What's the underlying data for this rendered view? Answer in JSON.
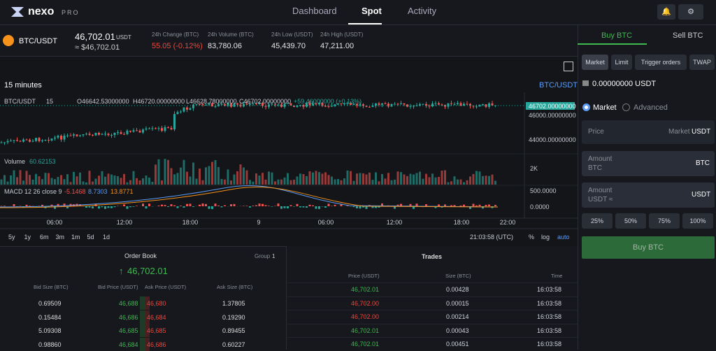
{
  "header": {
    "logo": "nexo",
    "logo_sub": "PRO",
    "nav": [
      "Dashboard",
      "Spot",
      "Activity"
    ]
  },
  "ticker": {
    "pair": "BTC/USDT",
    "price": "46,702.01",
    "price_unit": "USDT",
    "price_usd": "≈ $46,702.01",
    "stats": [
      {
        "label": "24h Change (BTC)",
        "value": "55.05 (-0.12%)",
        "color": "red"
      },
      {
        "label": "24h Volume (BTC)",
        "value": "83,780.06"
      },
      {
        "label": "24h Low (USDT)",
        "value": "45,439.70"
      },
      {
        "label": "24h High (USDT)",
        "value": "47,211.00"
      }
    ]
  },
  "chart": {
    "interval": "15 minutes",
    "symbol": "BTC/USDT",
    "legend": {
      "pair": "BTC/USDT",
      "interval": "15",
      "open": "O46642.53000000",
      "high": "H46720.00000000",
      "low": "L46628.78000000",
      "close": "C46702.00000000",
      "change": "+59.46000000 (+0.13%)"
    },
    "price_axis": [
      "46702.00000000",
      "46000.00000000",
      "44000.00000000"
    ],
    "volume": {
      "label": "Volume",
      "value": "60.62153",
      "axis": "2K"
    },
    "macd": {
      "label": "MACD 12 26 close 9",
      "values": [
        "-5.1468",
        "8.7303",
        "13.8771"
      ],
      "axis": [
        "500.0000",
        "0.0000"
      ]
    },
    "time_axis": [
      "06:00",
      "12:00",
      "18:00",
      "9",
      "06:00",
      "12:00",
      "18:00",
      "22:00"
    ],
    "ranges": [
      "5y",
      "1y",
      "6m",
      "3m",
      "1m",
      "5d",
      "1d"
    ],
    "clock": "21:03:58 (UTC)",
    "scale_options": [
      "%",
      "log",
      "auto"
    ]
  },
  "order_book": {
    "title": "Order Book",
    "group_label": "Group",
    "group_value": "1",
    "last_price": "46,702.01",
    "headers": [
      "Bid Size (BTC)",
      "Bid Price (USDT)",
      "Ask Price (USDT)",
      "Ask Size (BTC)"
    ],
    "rows": [
      [
        "0.69509",
        "46,688",
        "46,680",
        "1.37805"
      ],
      [
        "0.15484",
        "46,686",
        "46,684",
        "0.19290"
      ],
      [
        "5.09308",
        "46,685",
        "46,685",
        "0.89455"
      ],
      [
        "0.98860",
        "46,684",
        "46,686",
        "0.60227"
      ]
    ]
  },
  "trades": {
    "title": "Trades",
    "headers": [
      "Price (USDT)",
      "Size (BTC)",
      "Time"
    ],
    "rows": [
      {
        "price": "46,702.01",
        "size": "0.00428",
        "time": "16:03:58",
        "color": "green"
      },
      {
        "price": "46,702.00",
        "size": "0.00015",
        "time": "16:03:58",
        "color": "red"
      },
      {
        "price": "46,702.00",
        "size": "0.00214",
        "time": "16:03:58",
        "color": "red"
      },
      {
        "price": "46,702.01",
        "size": "0.00043",
        "time": "16:03:58",
        "color": "green"
      },
      {
        "price": "46,702.01",
        "size": "0.00451",
        "time": "16:03:58",
        "color": "green"
      }
    ]
  },
  "order_form": {
    "tabs": [
      "Buy BTC",
      "Sell BTC"
    ],
    "order_types": [
      "Market",
      "Limit",
      "Trigger orders",
      "TWAP"
    ],
    "balance": "0.00000000 USDT",
    "modes": [
      "Market",
      "Advanced"
    ],
    "price": {
      "label": "Price",
      "value": "Market",
      "unit": "USDT"
    },
    "amount_btc": {
      "label": "Amount",
      "sub": "BTC",
      "unit": "BTC"
    },
    "amount_usdt": {
      "label": "Amount",
      "sub": "USDT ≈",
      "unit": "USDT"
    },
    "percents": [
      "25%",
      "50%",
      "75%",
      "100%"
    ],
    "submit": "Buy BTC"
  }
}
